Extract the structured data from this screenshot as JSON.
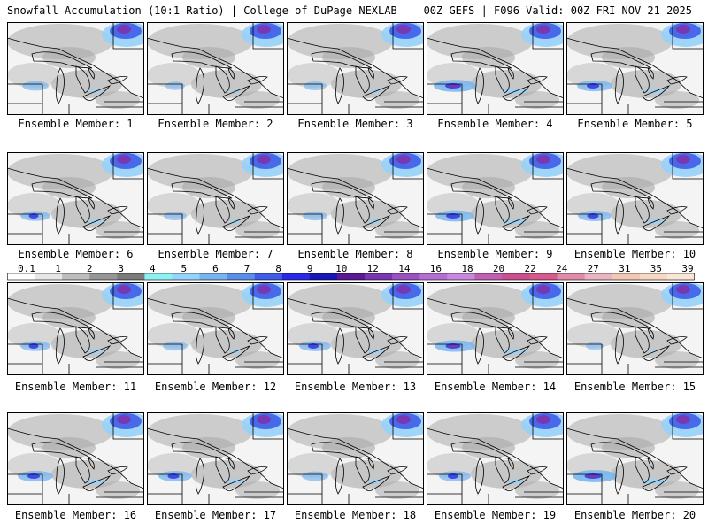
{
  "header": {
    "left": "Snowfall Accumulation (10:1 Ratio) | College of DuPage NEXLAB",
    "right": "00Z GEFS | F096 Valid: 00Z FRI NOV 21 2025"
  },
  "colorbar": {
    "ticks": [
      "0.1",
      "1",
      "2",
      "3",
      "4",
      "5",
      "6",
      "7",
      "8",
      "9",
      "10",
      "12",
      "14",
      "16",
      "18",
      "20",
      "22",
      "24",
      "27",
      "31",
      "35",
      "39"
    ],
    "colors": [
      "#ffffff",
      "#e6e6e6",
      "#bdbdbd",
      "#969696",
      "#7a7a7a",
      "#8ef0f0",
      "#96d2fa",
      "#78b4ee",
      "#5a8ee8",
      "#3e5ee8",
      "#2a2ae6",
      "#1818b8",
      "#5a1a96",
      "#7a36b0",
      "#9a52c2",
      "#b46ed2",
      "#c888de",
      "#c060b4",
      "#c85090",
      "#d65a8c",
      "#e08ca8",
      "#eab4c2",
      "#f0c8b4",
      "#f6d8c4",
      "#fae6d6"
    ]
  },
  "panels": [
    {
      "label": "Ensemble Member: 1",
      "intensity": 0.45
    },
    {
      "label": "Ensemble Member: 2",
      "intensity": 0.25
    },
    {
      "label": "Ensemble Member: 3",
      "intensity": 0.35
    },
    {
      "label": "Ensemble Member: 4",
      "intensity": 0.9
    },
    {
      "label": "Ensemble Member: 5",
      "intensity": 0.7
    },
    {
      "label": "Ensemble Member: 6",
      "intensity": 0.55
    },
    {
      "label": "Ensemble Member: 7",
      "intensity": 0.35
    },
    {
      "label": "Ensemble Member: 8",
      "intensity": 0.4
    },
    {
      "label": "Ensemble Member: 9",
      "intensity": 0.8
    },
    {
      "label": "Ensemble Member: 10",
      "intensity": 0.65
    },
    {
      "label": "Ensemble Member: 11",
      "intensity": 0.55
    },
    {
      "label": "Ensemble Member: 12",
      "intensity": 0.4
    },
    {
      "label": "Ensemble Member: 13",
      "intensity": 0.6
    },
    {
      "label": "Ensemble Member: 14",
      "intensity": 0.85
    },
    {
      "label": "Ensemble Member: 15",
      "intensity": 0.2
    },
    {
      "label": "Ensemble Member: 16",
      "intensity": 0.7
    },
    {
      "label": "Ensemble Member: 17",
      "intensity": 0.65
    },
    {
      "label": "Ensemble Member: 18",
      "intensity": 0.45
    },
    {
      "label": "Ensemble Member: 19",
      "intensity": 0.6
    },
    {
      "label": "Ensemble Member: 20",
      "intensity": 0.95
    }
  ]
}
